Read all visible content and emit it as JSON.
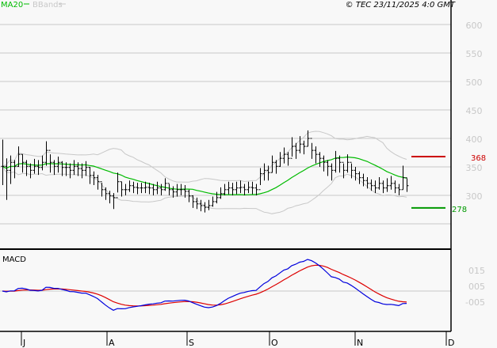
{
  "header": {
    "legend": [
      {
        "label": "MA20",
        "color": "#00bb00"
      },
      {
        "label": "BBands",
        "color": "#c8c8c8"
      }
    ],
    "copyright": "© TEC 23/11/2025 4:0 GMT"
  },
  "chart_data": [
    {
      "type": "ohlc",
      "title": "",
      "ylim": [
        225,
        625
      ],
      "y_ticks": [
        "600",
        "550",
        "500",
        "450",
        "400",
        "350",
        "300"
      ],
      "y_tick_values": [
        600,
        550,
        500,
        450,
        400,
        350,
        300
      ],
      "x_ticks": [
        "J",
        "A",
        "S",
        "O",
        "N",
        "D"
      ],
      "grid": true,
      "overlays": [
        "MA20",
        "BBands"
      ],
      "resistance": {
        "value": 368,
        "label": "368",
        "color": "#cc0000"
      },
      "support": {
        "value": 278,
        "label": "278",
        "color": "#009900"
      },
      "close": [
        351,
        344,
        358,
        351,
        372,
        358,
        351,
        344,
        351,
        349,
        358,
        379,
        358,
        351,
        358,
        349,
        349,
        344,
        351,
        347,
        344,
        349,
        335,
        331,
        324,
        310,
        303,
        299,
        296,
        324,
        310,
        310,
        317,
        314,
        313,
        313,
        314,
        313,
        310,
        313,
        310,
        321,
        310,
        306,
        310,
        310,
        307,
        299,
        289,
        285,
        282,
        279,
        282,
        289,
        296,
        303,
        310,
        313,
        310,
        313,
        314,
        310,
        314,
        313,
        310,
        338,
        344,
        340,
        358,
        351,
        365,
        372,
        365,
        386,
        379,
        390,
        386,
        400,
        379,
        372,
        365,
        358,
        351,
        344,
        365,
        358,
        344,
        358,
        344,
        338,
        331,
        326,
        321,
        317,
        313,
        321,
        313,
        317,
        321,
        313,
        310,
        331,
        317
      ],
      "high": [
        398,
        365,
        370,
        362,
        386,
        372,
        362,
        356,
        364,
        362,
        370,
        395,
        372,
        362,
        368,
        360,
        358,
        356,
        362,
        358,
        356,
        360,
        350,
        342,
        336,
        322,
        314,
        308,
        304,
        340,
        324,
        320,
        326,
        324,
        322,
        322,
        324,
        322,
        320,
        324,
        320,
        330,
        320,
        316,
        320,
        320,
        318,
        310,
        300,
        296,
        292,
        288,
        292,
        298,
        306,
        314,
        320,
        324,
        322,
        324,
        326,
        320,
        324,
        324,
        320,
        348,
        356,
        352,
        370,
        362,
        376,
        384,
        376,
        402,
        392,
        404,
        396,
        414,
        392,
        386,
        376,
        370,
        362,
        356,
        378,
        370,
        356,
        372,
        356,
        350,
        342,
        338,
        332,
        328,
        326,
        332,
        326,
        330,
        334,
        326,
        320,
        352,
        330
      ],
      "low": [
        318,
        292,
        320,
        330,
        350,
        340,
        334,
        330,
        338,
        336,
        344,
        352,
        340,
        336,
        340,
        334,
        334,
        330,
        336,
        334,
        330,
        334,
        320,
        318,
        310,
        298,
        292,
        286,
        276,
        305,
        298,
        300,
        306,
        304,
        302,
        304,
        304,
        302,
        300,
        302,
        300,
        308,
        300,
        296,
        298,
        300,
        296,
        288,
        278,
        276,
        272,
        270,
        274,
        280,
        286,
        294,
        300,
        302,
        300,
        302,
        304,
        300,
        304,
        302,
        300,
        318,
        326,
        326,
        340,
        338,
        350,
        356,
        352,
        368,
        364,
        374,
        372,
        386,
        364,
        356,
        350,
        342,
        334,
        326,
        340,
        340,
        330,
        340,
        330,
        326,
        320,
        316,
        312,
        308,
        304,
        310,
        304,
        306,
        310,
        304,
        300,
        310,
        306
      ]
    },
    {
      "type": "line",
      "title": "MACD",
      "y_ticks": [
        "015",
        "005",
        "-005"
      ],
      "series": [
        {
          "name": "MACD",
          "color": "#0000dd"
        },
        {
          "name": "Signal",
          "color": "#dd0000"
        }
      ],
      "grid": true
    }
  ]
}
